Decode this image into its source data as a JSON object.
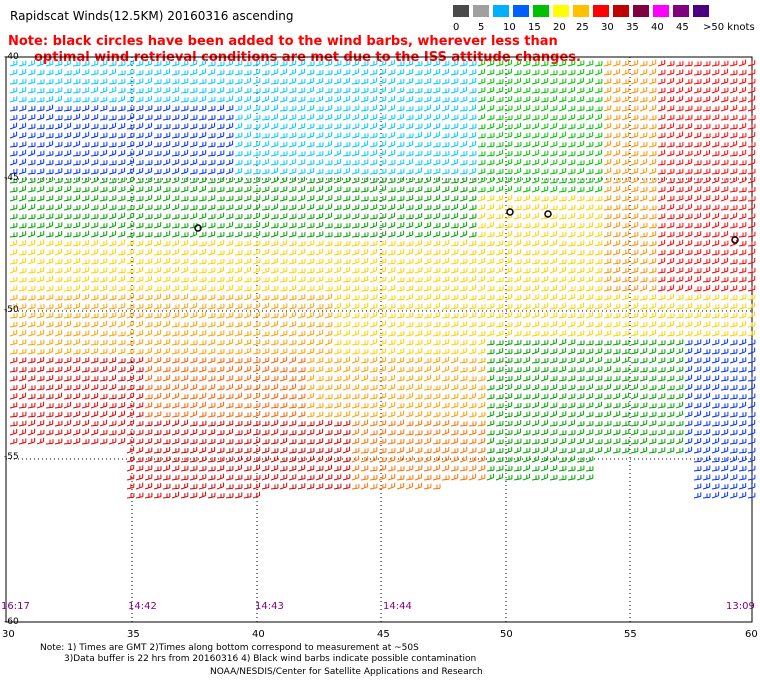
{
  "title": "Rapidscat Winds(12.5KM) 20160316 ascending",
  "note_lines": [
    "Note: black circles have been added to the wind barbs, wherever less than",
    "optimal wind retrieval conditions are met due to the ISS attitude changes."
  ],
  "legend": {
    "labels": [
      "0",
      "5",
      "10",
      "15",
      "20",
      "25",
      "30",
      "35",
      "40",
      "45",
      ">50 knots"
    ],
    "colors": [
      "#4a4a4a",
      "#a0a0a0",
      "#00b0ff",
      "#0060ff",
      "#00c000",
      "#ffff00",
      "#ffc000",
      "#ff0000",
      "#c00000",
      "#800040",
      "#ff00ff",
      "#800080",
      "#4b0082"
    ]
  },
  "map": {
    "lon_ticks": [
      "30",
      "35",
      "40",
      "45",
      "50",
      "55",
      "60"
    ],
    "lat_ticks": [
      "-40",
      "-45",
      "-50",
      "-55",
      "-60"
    ],
    "lon_range": [
      30,
      60
    ],
    "lat_range": [
      -40,
      -60
    ]
  },
  "pass_times": [
    "16:17",
    "14:42",
    "14:43",
    "14:44",
    "13:09"
  ],
  "footer": {
    "line1": "Note: 1) Times are GMT 2)Times along bottom correspond to measurement at ~50S",
    "line2": "3)Data buffer is 22 hrs from 20160316 4) Black wind barbs indicate possible contamination",
    "line3": "NOAA/NESDIS/Center for Satellite Applications and Research"
  }
}
